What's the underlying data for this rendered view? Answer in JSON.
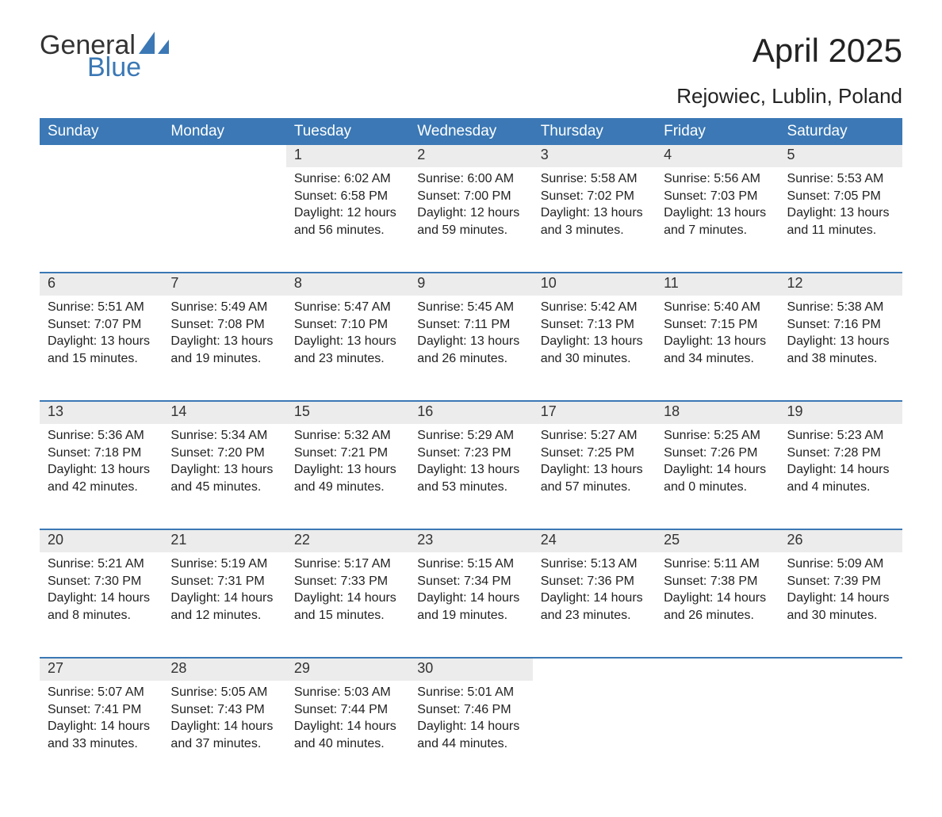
{
  "logo": {
    "line1": "General",
    "line2": "Blue",
    "color_text": "#333333",
    "color_blue": "#3b78b5"
  },
  "title": "April 2025",
  "subtitle": "Rejowiec, Lublin, Poland",
  "colors": {
    "header_bg": "#3b78b5",
    "header_text": "#ffffff",
    "daynum_bg": "#ececec",
    "text": "#222222",
    "page_bg": "#ffffff",
    "week_border": "#3b78b5"
  },
  "fonts": {
    "title_size_pt": 32,
    "subtitle_size_pt": 20,
    "header_size_pt": 14,
    "daynum_size_pt": 14,
    "body_size_pt": 12
  },
  "day_headers": [
    "Sunday",
    "Monday",
    "Tuesday",
    "Wednesday",
    "Thursday",
    "Friday",
    "Saturday"
  ],
  "weeks": [
    [
      null,
      null,
      {
        "n": "1",
        "sr": "Sunrise: 6:02 AM",
        "ss": "Sunset: 6:58 PM",
        "d1": "Daylight: 12 hours",
        "d2": "and 56 minutes."
      },
      {
        "n": "2",
        "sr": "Sunrise: 6:00 AM",
        "ss": "Sunset: 7:00 PM",
        "d1": "Daylight: 12 hours",
        "d2": "and 59 minutes."
      },
      {
        "n": "3",
        "sr": "Sunrise: 5:58 AM",
        "ss": "Sunset: 7:02 PM",
        "d1": "Daylight: 13 hours",
        "d2": "and 3 minutes."
      },
      {
        "n": "4",
        "sr": "Sunrise: 5:56 AM",
        "ss": "Sunset: 7:03 PM",
        "d1": "Daylight: 13 hours",
        "d2": "and 7 minutes."
      },
      {
        "n": "5",
        "sr": "Sunrise: 5:53 AM",
        "ss": "Sunset: 7:05 PM",
        "d1": "Daylight: 13 hours",
        "d2": "and 11 minutes."
      }
    ],
    [
      {
        "n": "6",
        "sr": "Sunrise: 5:51 AM",
        "ss": "Sunset: 7:07 PM",
        "d1": "Daylight: 13 hours",
        "d2": "and 15 minutes."
      },
      {
        "n": "7",
        "sr": "Sunrise: 5:49 AM",
        "ss": "Sunset: 7:08 PM",
        "d1": "Daylight: 13 hours",
        "d2": "and 19 minutes."
      },
      {
        "n": "8",
        "sr": "Sunrise: 5:47 AM",
        "ss": "Sunset: 7:10 PM",
        "d1": "Daylight: 13 hours",
        "d2": "and 23 minutes."
      },
      {
        "n": "9",
        "sr": "Sunrise: 5:45 AM",
        "ss": "Sunset: 7:11 PM",
        "d1": "Daylight: 13 hours",
        "d2": "and 26 minutes."
      },
      {
        "n": "10",
        "sr": "Sunrise: 5:42 AM",
        "ss": "Sunset: 7:13 PM",
        "d1": "Daylight: 13 hours",
        "d2": "and 30 minutes."
      },
      {
        "n": "11",
        "sr": "Sunrise: 5:40 AM",
        "ss": "Sunset: 7:15 PM",
        "d1": "Daylight: 13 hours",
        "d2": "and 34 minutes."
      },
      {
        "n": "12",
        "sr": "Sunrise: 5:38 AM",
        "ss": "Sunset: 7:16 PM",
        "d1": "Daylight: 13 hours",
        "d2": "and 38 minutes."
      }
    ],
    [
      {
        "n": "13",
        "sr": "Sunrise: 5:36 AM",
        "ss": "Sunset: 7:18 PM",
        "d1": "Daylight: 13 hours",
        "d2": "and 42 minutes."
      },
      {
        "n": "14",
        "sr": "Sunrise: 5:34 AM",
        "ss": "Sunset: 7:20 PM",
        "d1": "Daylight: 13 hours",
        "d2": "and 45 minutes."
      },
      {
        "n": "15",
        "sr": "Sunrise: 5:32 AM",
        "ss": "Sunset: 7:21 PM",
        "d1": "Daylight: 13 hours",
        "d2": "and 49 minutes."
      },
      {
        "n": "16",
        "sr": "Sunrise: 5:29 AM",
        "ss": "Sunset: 7:23 PM",
        "d1": "Daylight: 13 hours",
        "d2": "and 53 minutes."
      },
      {
        "n": "17",
        "sr": "Sunrise: 5:27 AM",
        "ss": "Sunset: 7:25 PM",
        "d1": "Daylight: 13 hours",
        "d2": "and 57 minutes."
      },
      {
        "n": "18",
        "sr": "Sunrise: 5:25 AM",
        "ss": "Sunset: 7:26 PM",
        "d1": "Daylight: 14 hours",
        "d2": "and 0 minutes."
      },
      {
        "n": "19",
        "sr": "Sunrise: 5:23 AM",
        "ss": "Sunset: 7:28 PM",
        "d1": "Daylight: 14 hours",
        "d2": "and 4 minutes."
      }
    ],
    [
      {
        "n": "20",
        "sr": "Sunrise: 5:21 AM",
        "ss": "Sunset: 7:30 PM",
        "d1": "Daylight: 14 hours",
        "d2": "and 8 minutes."
      },
      {
        "n": "21",
        "sr": "Sunrise: 5:19 AM",
        "ss": "Sunset: 7:31 PM",
        "d1": "Daylight: 14 hours",
        "d2": "and 12 minutes."
      },
      {
        "n": "22",
        "sr": "Sunrise: 5:17 AM",
        "ss": "Sunset: 7:33 PM",
        "d1": "Daylight: 14 hours",
        "d2": "and 15 minutes."
      },
      {
        "n": "23",
        "sr": "Sunrise: 5:15 AM",
        "ss": "Sunset: 7:34 PM",
        "d1": "Daylight: 14 hours",
        "d2": "and 19 minutes."
      },
      {
        "n": "24",
        "sr": "Sunrise: 5:13 AM",
        "ss": "Sunset: 7:36 PM",
        "d1": "Daylight: 14 hours",
        "d2": "and 23 minutes."
      },
      {
        "n": "25",
        "sr": "Sunrise: 5:11 AM",
        "ss": "Sunset: 7:38 PM",
        "d1": "Daylight: 14 hours",
        "d2": "and 26 minutes."
      },
      {
        "n": "26",
        "sr": "Sunrise: 5:09 AM",
        "ss": "Sunset: 7:39 PM",
        "d1": "Daylight: 14 hours",
        "d2": "and 30 minutes."
      }
    ],
    [
      {
        "n": "27",
        "sr": "Sunrise: 5:07 AM",
        "ss": "Sunset: 7:41 PM",
        "d1": "Daylight: 14 hours",
        "d2": "and 33 minutes."
      },
      {
        "n": "28",
        "sr": "Sunrise: 5:05 AM",
        "ss": "Sunset: 7:43 PM",
        "d1": "Daylight: 14 hours",
        "d2": "and 37 minutes."
      },
      {
        "n": "29",
        "sr": "Sunrise: 5:03 AM",
        "ss": "Sunset: 7:44 PM",
        "d1": "Daylight: 14 hours",
        "d2": "and 40 minutes."
      },
      {
        "n": "30",
        "sr": "Sunrise: 5:01 AM",
        "ss": "Sunset: 7:46 PM",
        "d1": "Daylight: 14 hours",
        "d2": "and 44 minutes."
      },
      null,
      null,
      null
    ]
  ]
}
